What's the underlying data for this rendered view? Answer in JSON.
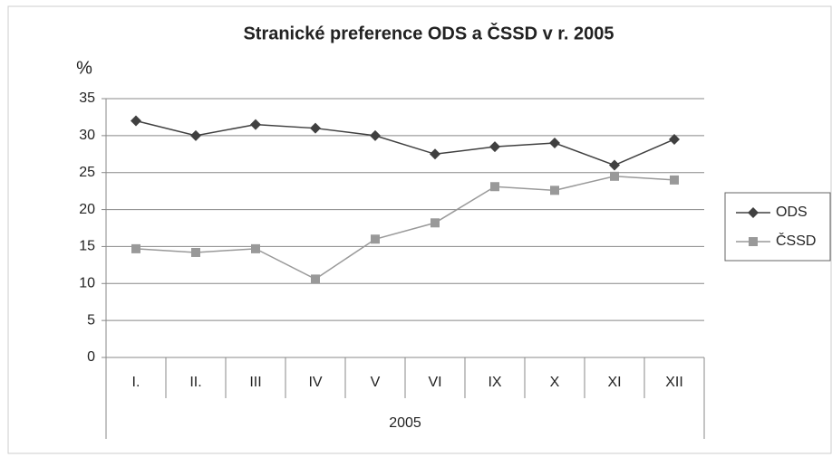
{
  "chart_data": {
    "type": "line",
    "title": "Stranické preference ODS a ČSSD v r. 2005",
    "y_label": "%",
    "x_group_label": "2005",
    "categories": [
      "I.",
      "II.",
      "III",
      "IV",
      "V",
      "VI",
      "IX",
      "X",
      "XI",
      "XII"
    ],
    "series": [
      {
        "name": "ODS",
        "color": "#404040",
        "marker": "diamond",
        "values": [
          32,
          30,
          31.5,
          31,
          30,
          27.5,
          28.5,
          29,
          26,
          29.5
        ]
      },
      {
        "name": "ČSSD",
        "color": "#999999",
        "marker": "square",
        "values": [
          14.7,
          14.2,
          14.7,
          10.6,
          16,
          18.2,
          23.1,
          22.6,
          24.5,
          24
        ]
      }
    ],
    "ylim": [
      0,
      35
    ],
    "yticks": [
      0,
      5,
      10,
      15,
      20,
      25,
      30,
      35
    ],
    "grid": true,
    "legend": "right"
  }
}
